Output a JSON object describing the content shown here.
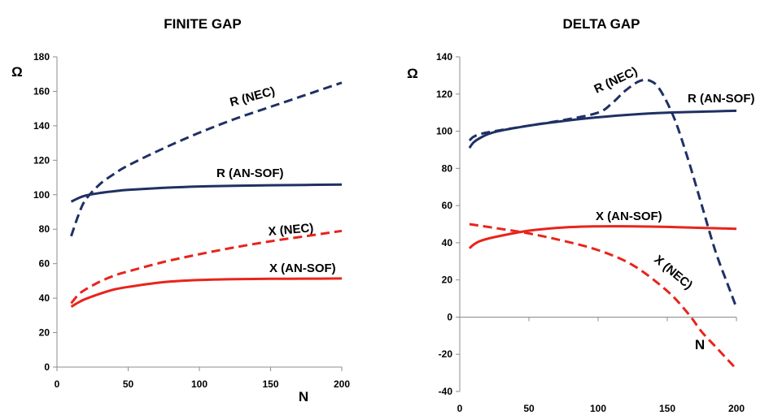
{
  "chart_data": [
    {
      "type": "line",
      "title": "FINITE GAP",
      "xlabel": "N",
      "ylabel": "Ω",
      "xlim": [
        0,
        200
      ],
      "ylim": [
        0,
        180
      ],
      "xticks": [
        "0",
        "50",
        "100",
        "150",
        "200"
      ],
      "yticks": [
        "0",
        "20",
        "40",
        "60",
        "80",
        "100",
        "120",
        "140",
        "160",
        "180"
      ],
      "grid": false,
      "legend": "none",
      "series": [
        {
          "name": "R (AN-SOF)",
          "color": "#1f3064",
          "dash": "solid",
          "x": [
            10,
            15,
            20,
            30,
            40,
            50,
            75,
            100,
            125,
            150,
            175,
            200
          ],
          "y": [
            96,
            98,
            99.5,
            101,
            102,
            102.8,
            104,
            104.8,
            105.2,
            105.5,
            105.7,
            105.9
          ]
        },
        {
          "name": "R (NEC)",
          "color": "#1f3064",
          "dash": "dashed",
          "x": [
            10,
            15,
            20,
            30,
            40,
            50,
            75,
            100,
            125,
            150,
            175,
            200
          ],
          "y": [
            76,
            88,
            97,
            106,
            112,
            117,
            127,
            136,
            144,
            151,
            158,
            165
          ]
        },
        {
          "name": "X (NEC)",
          "color": "#e8241c",
          "dash": "dashed",
          "x": [
            10,
            15,
            20,
            30,
            40,
            50,
            75,
            100,
            125,
            150,
            175,
            200
          ],
          "y": [
            37,
            42,
            45,
            49.5,
            53,
            55.5,
            61,
            65.5,
            69.5,
            73,
            76,
            79
          ]
        },
        {
          "name": "X (AN-SOF)",
          "color": "#e8241c",
          "dash": "solid",
          "x": [
            10,
            15,
            20,
            30,
            40,
            50,
            75,
            100,
            125,
            150,
            175,
            200
          ],
          "y": [
            35,
            37.5,
            39.5,
            42.5,
            45,
            46.5,
            49.3,
            50.5,
            51,
            51.2,
            51.3,
            51.4
          ]
        }
      ],
      "annotations": [
        {
          "text": "R (NEC)",
          "series": "R (NEC)"
        },
        {
          "text": "R (AN-SOF)",
          "series": "R (AN-SOF)"
        },
        {
          "text": "X (NEC)",
          "series": "X (NEC)"
        },
        {
          "text": "X (AN-SOF)",
          "series": "X (AN-SOF)"
        }
      ]
    },
    {
      "type": "line",
      "title": "DELTA GAP",
      "xlabel": "N",
      "ylabel": "Ω",
      "xlim": [
        0,
        200
      ],
      "ylim": [
        -40,
        140
      ],
      "xticks": [
        "0",
        "50",
        "100",
        "150",
        "200"
      ],
      "yticks": [
        "-40",
        "-20",
        "0",
        "20",
        "40",
        "60",
        "80",
        "100",
        "120",
        "140"
      ],
      "grid": false,
      "legend": "none",
      "series": [
        {
          "name": "R (AN-SOF)",
          "color": "#1f3064",
          "dash": "solid",
          "x": [
            7,
            10,
            15,
            25,
            50,
            75,
            100,
            125,
            150,
            175,
            200
          ],
          "y": [
            91,
            94,
            96.5,
            99.5,
            103,
            105.5,
            107.5,
            109,
            110,
            110.5,
            111
          ]
        },
        {
          "name": "R (NEC)",
          "color": "#1f3064",
          "dash": "dashed",
          "x": [
            7,
            10,
            15,
            25,
            50,
            75,
            100,
            110,
            120,
            130,
            138,
            145,
            155,
            165,
            175,
            185,
            195,
            200
          ],
          "y": [
            95,
            97,
            98.5,
            100,
            103,
            106,
            110,
            115,
            122,
            127,
            127,
            122,
            107,
            85,
            60,
            35,
            15,
            5
          ]
        },
        {
          "name": "X (AN-SOF)",
          "color": "#e8241c",
          "dash": "solid",
          "x": [
            7,
            10,
            15,
            25,
            50,
            75,
            100,
            125,
            150,
            175,
            200
          ],
          "y": [
            37,
            39,
            41,
            43,
            46.5,
            48.2,
            48.8,
            48.8,
            48.5,
            48,
            47.5
          ]
        },
        {
          "name": "X (NEC)",
          "color": "#e8241c",
          "dash": "dashed",
          "x": [
            7,
            25,
            50,
            75,
            100,
            125,
            150,
            165,
            175,
            185,
            195,
            200
          ],
          "y": [
            50,
            48,
            45,
            41,
            36,
            28,
            14,
            2,
            -8,
            -16,
            -24,
            -28
          ]
        }
      ],
      "annotations": [
        {
          "text": "R (NEC)",
          "series": "R (NEC)"
        },
        {
          "text": "R (AN-SOF)",
          "series": "R (AN-SOF)"
        },
        {
          "text": "X (AN-SOF)",
          "series": "X (AN-SOF)"
        },
        {
          "text": "X (NEC)",
          "series": "X (NEC)"
        }
      ]
    }
  ]
}
